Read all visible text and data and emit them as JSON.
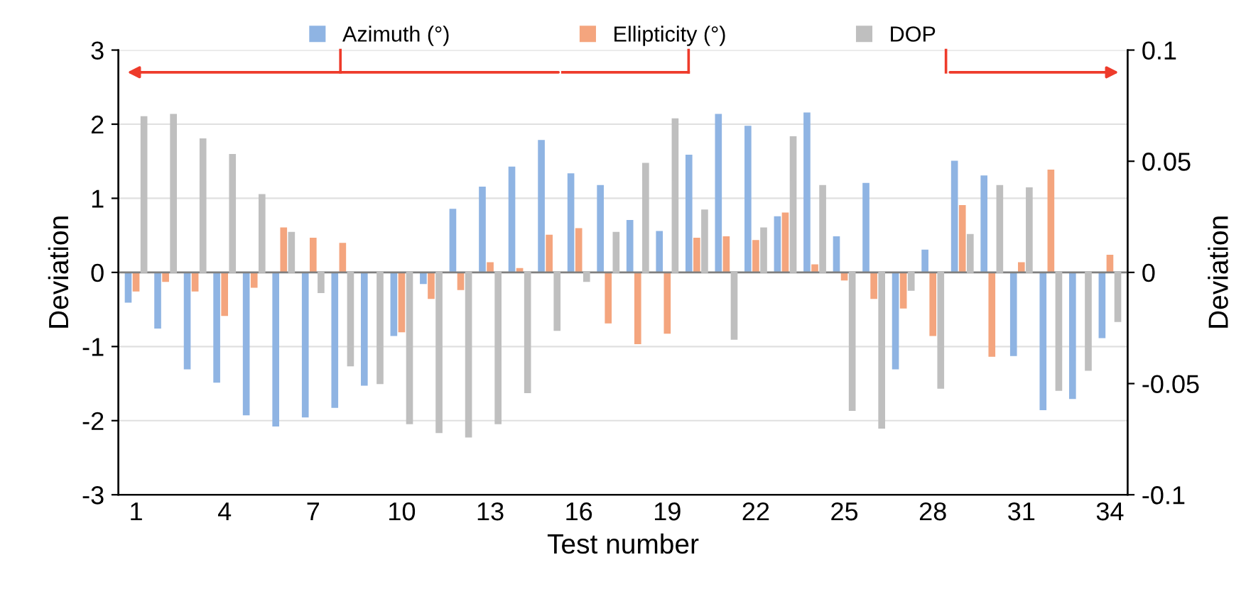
{
  "chart_data": {
    "type": "bar",
    "xlabel": "Test number",
    "ylabel": "Deviation",
    "y2label": "Deviation",
    "categories": [
      "1",
      null,
      null,
      "4",
      null,
      null,
      "7",
      null,
      null,
      "10",
      null,
      null,
      "13",
      null,
      null,
      "16",
      null,
      null,
      "19",
      null,
      null,
      "22",
      null,
      null,
      "25",
      null,
      null,
      "28",
      null,
      null,
      "31",
      null,
      null,
      "34"
    ],
    "series": [
      {
        "name": "Azimuth (°)",
        "color": "#8fb4e3",
        "values": [
          -0.4,
          -0.75,
          -1.3,
          -1.48,
          -1.92,
          -2.07,
          -1.95,
          -1.82,
          -1.52,
          -0.85,
          -0.15,
          0.85,
          1.15,
          1.42,
          1.78,
          1.33,
          1.17,
          0.7,
          0.55,
          1.58,
          2.13,
          1.97,
          0.75,
          2.15,
          0.48,
          1.2,
          -1.3,
          0.3,
          1.5,
          1.3,
          -1.12,
          -1.85,
          -1.7,
          -0.88
        ]
      },
      {
        "name": "Ellipticity (°)",
        "color": "#f4a57e",
        "values": [
          -0.25,
          -0.12,
          -0.25,
          -0.58,
          -0.2,
          0.6,
          0.46,
          0.39,
          null,
          -0.8,
          -0.35,
          -0.23,
          0.13,
          0.05,
          0.5,
          0.59,
          -0.68,
          -0.96,
          -0.82,
          0.46,
          0.48,
          0.43,
          0.8,
          0.1,
          -0.1,
          -0.35,
          -0.48,
          -0.85,
          0.9,
          -1.13,
          0.13,
          1.38,
          0.0,
          0.23
        ]
      },
      {
        "name": "DOP",
        "color": "#bfbfbf",
        "axis": "y2",
        "values": [
          0.07,
          0.071,
          0.06,
          0.053,
          0.035,
          0.018,
          -0.009,
          -0.042,
          -0.05,
          -0.068,
          -0.072,
          -0.074,
          -0.068,
          -0.054,
          -0.026,
          -0.004,
          0.018,
          0.049,
          0.069,
          0.028,
          -0.03,
          0.02,
          0.061,
          0.039,
          -0.062,
          -0.07,
          -0.008,
          -0.052,
          0.017,
          0.039,
          0.038,
          -0.053,
          -0.044,
          -0.022
        ]
      }
    ],
    "ylim": [
      -3,
      3
    ],
    "yticks": [
      -3,
      -2,
      -1,
      0,
      1,
      2,
      3
    ],
    "y2lim": [
      -0.1,
      0.1
    ],
    "y2ticks": [
      -0.1,
      -0.05,
      0,
      0.05,
      0.1
    ],
    "grid": "y",
    "legend": "top"
  }
}
